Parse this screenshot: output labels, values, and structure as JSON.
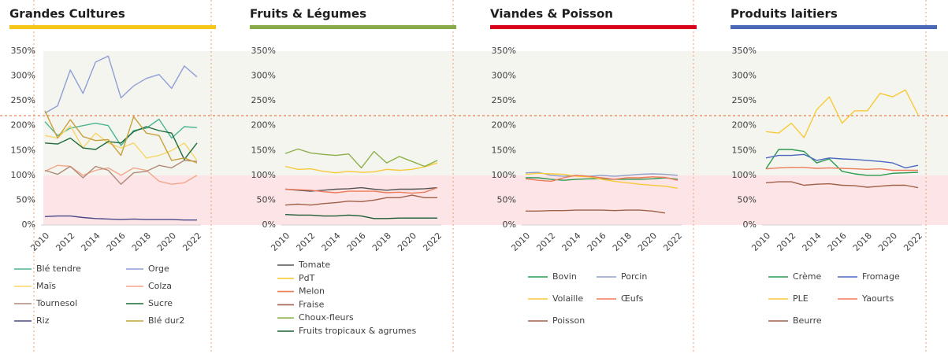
{
  "chart_data": [
    {
      "type": "line",
      "title": "Grandes Cultures",
      "title_color": "#f5c518",
      "x": [
        2010,
        2011,
        2012,
        2013,
        2014,
        2015,
        2016,
        2017,
        2018,
        2019,
        2020,
        2021,
        2022
      ],
      "xticks": [
        2010,
        2012,
        2014,
        2016,
        2018,
        2020,
        2022
      ],
      "ylim": [
        0,
        350
      ],
      "yticks": [
        {
          "value": 0,
          "label": "0%"
        },
        {
          "value": 50,
          "label": "50%"
        },
        {
          "value": 100,
          "label": "100%"
        },
        {
          "value": 150,
          "label": "150%"
        },
        {
          "value": 200,
          "label": "200%"
        },
        {
          "value": 250,
          "label": "250%"
        },
        {
          "value": 300,
          "label": "300%"
        },
        {
          "value": 350,
          "label": "350%"
        }
      ],
      "series": [
        {
          "name": "Blé tendre",
          "color": "#4ab591",
          "values": [
            208,
            180,
            195,
            200,
            205,
            200,
            160,
            190,
            195,
            213,
            175,
            198,
            196
          ]
        },
        {
          "name": "Orge",
          "color": "#8f9fd6",
          "values": [
            225,
            240,
            312,
            265,
            328,
            340,
            256,
            280,
            295,
            303,
            275,
            320,
            298
          ]
        },
        {
          "name": "Maïs",
          "color": "#f8d568",
          "values": [
            180,
            175,
            200,
            155,
            185,
            165,
            155,
            165,
            135,
            140,
            150,
            165,
            130
          ]
        },
        {
          "name": "Colza",
          "color": "#f4a58a",
          "values": [
            108,
            120,
            118,
            100,
            110,
            115,
            100,
            115,
            110,
            88,
            82,
            85,
            100
          ]
        },
        {
          "name": "Tournesol",
          "color": "#b08a7a",
          "values": [
            110,
            102,
            118,
            95,
            118,
            110,
            82,
            105,
            108,
            120,
            115,
            130,
            128
          ]
        },
        {
          "name": "Sucre",
          "color": "#1d6b3b",
          "values": [
            165,
            163,
            175,
            155,
            152,
            168,
            165,
            188,
            198,
            190,
            185,
            132,
            165
          ]
        },
        {
          "name": "Riz",
          "color": "#4a4a8a",
          "values": [
            17,
            18,
            18,
            15,
            13,
            12,
            11,
            12,
            11,
            11,
            11,
            10,
            10
          ]
        },
        {
          "name": "Blé dur2",
          "color": "#c9a03c",
          "values": [
            230,
            175,
            212,
            178,
            170,
            172,
            140,
            218,
            185,
            180,
            130,
            135,
            125
          ]
        }
      ]
    },
    {
      "type": "line",
      "title": "Fruits & Légumes",
      "title_color": "#8aab4a",
      "x": [
        2010,
        2011,
        2012,
        2013,
        2014,
        2015,
        2016,
        2017,
        2018,
        2019,
        2020,
        2021,
        2022
      ],
      "xticks": [
        2010,
        2012,
        2014,
        2016,
        2018,
        2020,
        2022
      ],
      "ylim": [
        0,
        350
      ],
      "yticks": [
        {
          "value": 0,
          "label": "0%"
        },
        {
          "value": 50,
          "label": "50%"
        },
        {
          "value": 100,
          "label": "100%"
        },
        {
          "value": 150,
          "label": "150%"
        },
        {
          "value": 200,
          "label": "200%"
        },
        {
          "value": 250,
          "label": "250%"
        },
        {
          "value": 300,
          "label": "300%"
        },
        {
          "value": 350,
          "label": "350%"
        }
      ],
      "series": [
        {
          "name": "Tomate",
          "color": "#555555",
          "values": [
            72,
            70,
            68,
            70,
            72,
            73,
            75,
            72,
            70,
            72,
            72,
            73,
            75
          ]
        },
        {
          "name": "PdT",
          "color": "#f8c93a",
          "values": [
            118,
            112,
            113,
            108,
            105,
            108,
            106,
            107,
            112,
            110,
            112,
            117,
            125
          ]
        },
        {
          "name": "Melon",
          "color": "#ee7b5a",
          "values": [
            72,
            71,
            70,
            67,
            65,
            68,
            68,
            68,
            65,
            66,
            64,
            66,
            75
          ]
        },
        {
          "name": "Fraise",
          "color": "#a0604a",
          "values": [
            40,
            42,
            40,
            43,
            45,
            48,
            47,
            50,
            55,
            55,
            60,
            55,
            55
          ]
        },
        {
          "name": "Choux-fleurs",
          "color": "#8cb04a",
          "values": [
            144,
            153,
            145,
            142,
            140,
            143,
            115,
            148,
            125,
            138,
            128,
            118,
            130
          ]
        },
        {
          "name": "Fruits tropicaux & agrumes",
          "color": "#1d5b35",
          "values": [
            21,
            20,
            20,
            18,
            18,
            20,
            18,
            13,
            13,
            14,
            14,
            14,
            14
          ]
        }
      ]
    },
    {
      "type": "line",
      "title": "Viandes & Poisson",
      "title_color": "#d9001b",
      "x": [
        2010,
        2011,
        2012,
        2013,
        2014,
        2015,
        2016,
        2017,
        2018,
        2019,
        2020,
        2021,
        2022
      ],
      "xticks": [
        2010,
        2012,
        2014,
        2016,
        2018,
        2020,
        2022
      ],
      "ylim": [
        0,
        350
      ],
      "yticks": [
        {
          "value": 0,
          "label": "0%"
        },
        {
          "value": 50,
          "label": "50%"
        },
        {
          "value": 100,
          "label": "100%"
        },
        {
          "value": 150,
          "label": "150%"
        },
        {
          "value": 200,
          "label": "200%"
        },
        {
          "value": 250,
          "label": "250%"
        },
        {
          "value": 300,
          "label": "300%"
        },
        {
          "value": 350,
          "label": "350%"
        }
      ],
      "series": [
        {
          "name": "Bovin",
          "color": "#2a9a50",
          "values": [
            95,
            95,
            92,
            90,
            92,
            93,
            93,
            92,
            92,
            92,
            93,
            95,
            92
          ]
        },
        {
          "name": "Porcin",
          "color": "#8fa0c8",
          "values": [
            105,
            106,
            100,
            98,
            100,
            98,
            100,
            98,
            100,
            102,
            103,
            102,
            100
          ]
        },
        {
          "name": "Volaille",
          "color": "#f8c93a",
          "values": [
            102,
            104,
            103,
            102,
            98,
            97,
            92,
            88,
            85,
            82,
            80,
            78,
            74
          ]
        },
        {
          "name": "Œufs",
          "color": "#ee7b5a",
          "values": [
            93,
            90,
            88,
            95,
            100,
            98,
            95,
            92,
            95,
            95,
            97,
            96,
            90
          ]
        },
        {
          "name": "Poisson",
          "color": "#a0604a",
          "values": [
            28,
            28,
            29,
            29,
            30,
            30,
            30,
            29,
            30,
            30,
            28,
            24,
            null
          ]
        }
      ]
    },
    {
      "type": "line",
      "title": "Produits laitiers",
      "title_color": "#4a68b8",
      "x": [
        2010,
        2011,
        2012,
        2013,
        2014,
        2015,
        2016,
        2017,
        2018,
        2019,
        2020,
        2021,
        2022
      ],
      "xticks": [
        2010,
        2012,
        2014,
        2016,
        2018,
        2020,
        2022
      ],
      "ylim": [
        0,
        350
      ],
      "yticks": [
        {
          "value": 0,
          "label": "0%"
        },
        {
          "value": 50,
          "label": "50%"
        },
        {
          "value": 100,
          "label": "100%"
        },
        {
          "value": 150,
          "label": "150%"
        },
        {
          "value": 200,
          "label": "200%"
        },
        {
          "value": 250,
          "label": "250%"
        },
        {
          "value": 300,
          "label": "300%"
        },
        {
          "value": 350,
          "label": "350%"
        }
      ],
      "series": [
        {
          "name": "Crème",
          "color": "#2a9a50",
          "values": [
            113,
            152,
            152,
            148,
            125,
            133,
            108,
            103,
            100,
            100,
            104,
            105,
            106
          ]
        },
        {
          "name": "Fromage",
          "color": "#4a68c0",
          "values": [
            135,
            140,
            140,
            142,
            130,
            135,
            133,
            132,
            130,
            128,
            125,
            115,
            120
          ]
        },
        {
          "name": "PLE",
          "color": "#f8c93a",
          "values": [
            188,
            185,
            205,
            176,
            232,
            258,
            205,
            230,
            230,
            265,
            258,
            272,
            222
          ]
        },
        {
          "name": "Yaourts",
          "color": "#ee7b5a",
          "values": [
            113,
            115,
            116,
            116,
            114,
            115,
            114,
            113,
            112,
            113,
            110,
            110,
            110
          ]
        },
        {
          "name": "Beurre",
          "color": "#a0604a",
          "values": [
            85,
            87,
            87,
            80,
            82,
            83,
            80,
            79,
            76,
            78,
            80,
            80,
            75
          ]
        }
      ]
    }
  ]
}
